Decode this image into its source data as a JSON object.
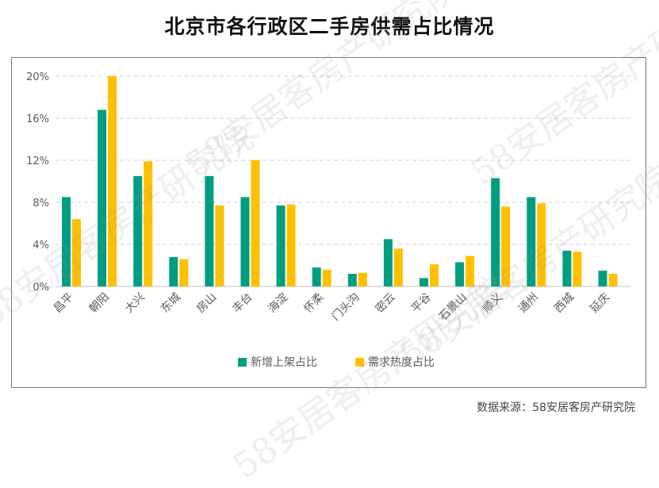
{
  "title": "北京市各行政区二手房供需占比情况",
  "source": "数据来源：58安居客房产研究院",
  "watermark": "58安居客房产研究院",
  "colors": {
    "supply": "#009e80",
    "demand": "#ffc000",
    "grid": "#d0d0d0",
    "axis": "#bfbfbf",
    "text": "#595959"
  },
  "chart_data": {
    "type": "bar",
    "title": "北京市各行政区二手房供需占比情况",
    "xlabel": "",
    "ylabel": "",
    "categories": [
      "昌平",
      "朝阳",
      "大兴",
      "东城",
      "房山",
      "丰台",
      "海淀",
      "怀柔",
      "门头沟",
      "密云",
      "平谷",
      "石景山",
      "顺义",
      "通州",
      "西城",
      "延庆"
    ],
    "series": [
      {
        "name": "新增上架占比",
        "color": "#009e80",
        "values": [
          8.5,
          16.8,
          10.5,
          2.8,
          10.5,
          8.5,
          7.7,
          1.8,
          1.2,
          4.5,
          0.8,
          2.3,
          10.3,
          8.5,
          3.4,
          1.5
        ]
      },
      {
        "name": "需求热度占比",
        "color": "#ffc000",
        "values": [
          6.4,
          20.0,
          11.9,
          2.6,
          7.7,
          12.0,
          7.8,
          1.6,
          1.3,
          3.6,
          2.1,
          2.9,
          7.6,
          7.9,
          3.3,
          1.2
        ]
      }
    ],
    "yticks": [
      "0%",
      "4%",
      "8%",
      "12%",
      "16%",
      "20%"
    ],
    "ylim": [
      0,
      20
    ],
    "grid": true,
    "legend": "bottom-center"
  }
}
